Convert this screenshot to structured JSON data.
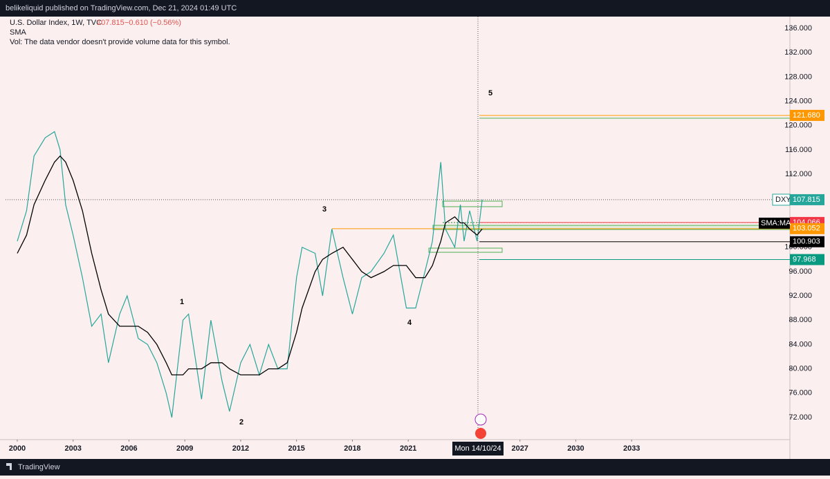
{
  "header": {
    "publisher": "belikeliquid published on TradingView.com, Dec 21, 2024 01:49 UTC"
  },
  "legend": {
    "symbol": "U.S. Dollar Index, 1W, TVC",
    "change": "−0.610 (−0.56%)",
    "sma": "SMA",
    "vol": "Vol: The data vendor doesn't provide volume data for this symbol."
  },
  "chart_data": {
    "type": "line",
    "x": [
      2000.0,
      2000.5,
      2000.9,
      2001.5,
      2002.0,
      2002.3,
      2002.6,
      2003.0,
      2003.5,
      2004.0,
      2004.5,
      2004.9,
      2005.5,
      2005.9,
      2006.5,
      2007.0,
      2007.5,
      2008.0,
      2008.3,
      2008.9,
      2009.2,
      2009.9,
      2010.4,
      2011.0,
      2011.4,
      2012.0,
      2012.5,
      2013.0,
      2013.5,
      2014.0,
      2014.5,
      2015.0,
      2015.3,
      2016.0,
      2016.4,
      2016.9,
      2017.5,
      2018.0,
      2018.5,
      2019.0,
      2019.7,
      2020.2,
      2020.9,
      2021.4,
      2021.9,
      2022.3,
      2022.75,
      2023.0,
      2023.5,
      2023.8,
      2024.0,
      2024.3,
      2024.7,
      2024.97
    ],
    "series": [
      {
        "name": "DXY",
        "color": "#26a69a",
        "values": [
          101,
          106,
          115,
          118,
          119,
          116,
          107,
          102,
          95,
          87,
          89,
          81,
          89,
          92,
          85,
          84,
          81,
          76,
          72,
          88,
          89,
          75,
          88,
          78,
          73,
          81,
          84,
          79,
          84,
          80,
          80,
          95,
          100,
          99,
          92,
          103,
          95,
          89,
          95,
          96,
          99,
          102,
          90,
          90,
          96,
          101,
          114,
          103,
          100,
          107,
          101,
          106,
          101,
          107.815
        ]
      },
      {
        "name": "SMA:MA",
        "color": "#000000",
        "values": [
          99,
          102,
          107,
          111,
          114,
          115,
          114,
          111,
          106,
          99,
          93,
          89,
          87,
          87,
          87,
          86,
          84,
          81,
          79,
          79,
          80,
          80,
          81,
          81,
          80,
          79,
          79,
          79,
          80,
          80,
          81,
          86,
          90,
          96,
          98,
          99,
          100,
          98,
          96,
          95,
          96,
          97,
          97,
          95,
          95,
          97,
          101,
          104,
          105,
          104,
          104,
          103,
          102,
          103
        ]
      }
    ],
    "xlim": [
      1999.37,
      2041.5
    ],
    "xticks": [
      2000,
      2003,
      2006,
      2009,
      2012,
      2015,
      2018,
      2021,
      2027,
      2030,
      2033
    ],
    "ylim": [
      68.36,
      137.93
    ],
    "yticks": [
      {
        "value": 136,
        "label": "136.000"
      },
      {
        "value": 132,
        "label": "132.000"
      },
      {
        "value": 128,
        "label": "128.000"
      },
      {
        "value": 124,
        "label": "124.000"
      },
      {
        "value": 120,
        "label": "120.000"
      },
      {
        "value": 116,
        "label": "116.000"
      },
      {
        "value": 112,
        "label": "112.000"
      },
      {
        "value": 100,
        "label": "100.000"
      },
      {
        "value": 96,
        "label": "96.000"
      },
      {
        "value": 92,
        "label": "92.000"
      },
      {
        "value": 88,
        "label": "88.000"
      },
      {
        "value": 84,
        "label": "84.000"
      },
      {
        "value": 80,
        "label": "80.000"
      },
      {
        "value": 76,
        "label": "76.000"
      },
      {
        "value": 72,
        "label": "72.000"
      }
    ],
    "levels": [
      {
        "price": {
          "value": 121.68,
          "label": "121.680"
        },
        "color": "#ff9800"
      },
      {
        "price": 104.066,
        "color": "#f23645"
      },
      {
        "price": 103.052,
        "color": "#ff9800"
      },
      {
        "price": 100.903,
        "color": "#000000"
      },
      {
        "price": 97.968,
        "color": "#089981"
      }
    ],
    "crosshair_label": "Mon 14/10/24",
    "waves": [
      "1",
      "2",
      "3",
      "4",
      "5"
    ]
  },
  "footer": {
    "brand": "TradingView"
  }
}
